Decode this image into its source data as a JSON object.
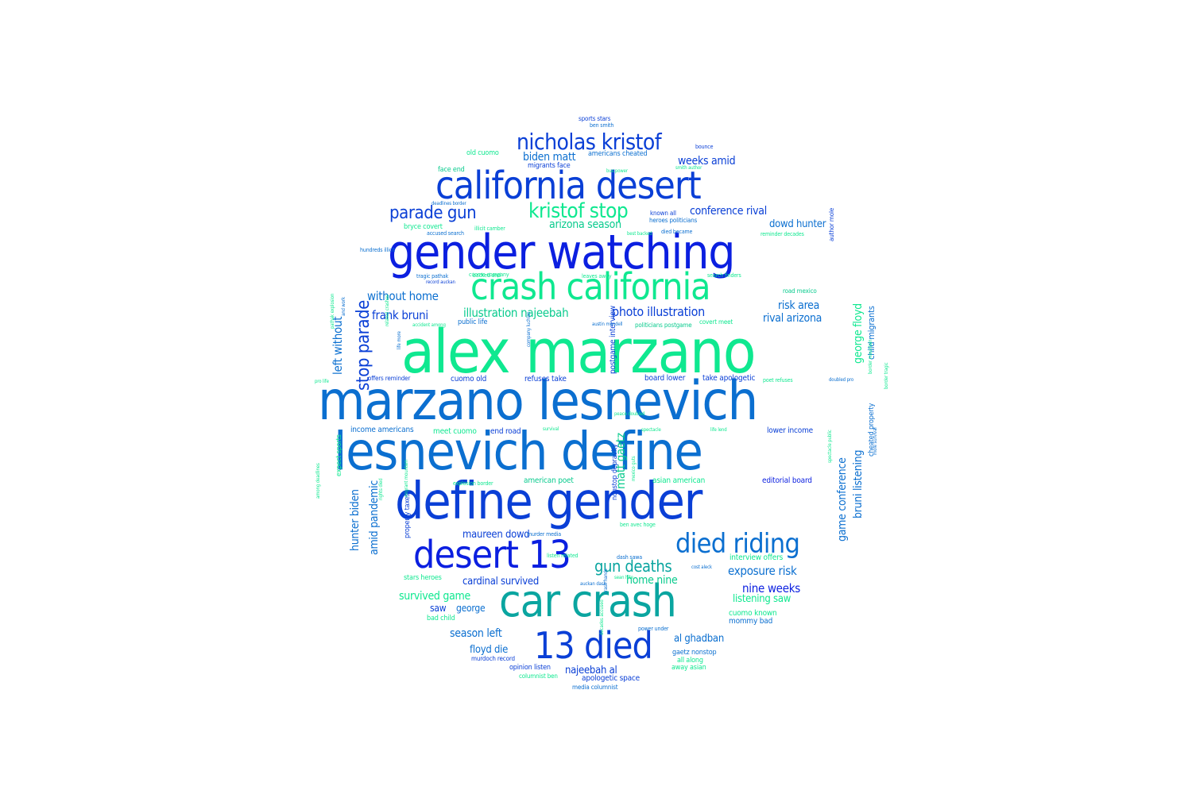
{
  "palette": {
    "blue": "#0b1fe0",
    "royal": "#0a3fd6",
    "azure": "#0b6fd0",
    "teal": "#0aa5a0",
    "mint": "#0fe890",
    "sea": "#0acb8e",
    "indigo": "#3a3af0"
  },
  "words": [
    {
      "text": "alex marzano",
      "color": "mint"
    },
    {
      "text": "marzano lesnevich",
      "color": "azure"
    },
    {
      "text": "lesnevich define",
      "color": "azure"
    },
    {
      "text": "gender watching",
      "color": "blue"
    },
    {
      "text": "define gender",
      "color": "royal"
    },
    {
      "text": "california desert",
      "color": "royal"
    },
    {
      "text": "crash california",
      "color": "mint"
    },
    {
      "text": "car crash",
      "color": "teal"
    },
    {
      "text": "desert 13",
      "color": "blue"
    },
    {
      "text": "13 died",
      "color": "royal"
    },
    {
      "text": "died riding",
      "color": "azure"
    },
    {
      "text": "nicholas kristof",
      "color": "royal"
    },
    {
      "text": "kristof stop",
      "color": "mint"
    },
    {
      "text": "parade gun",
      "color": "royal"
    },
    {
      "text": "stop parade",
      "color": "royal"
    },
    {
      "text": "gun deaths",
      "color": "teal"
    },
    {
      "text": "photo illustration",
      "color": "royal"
    },
    {
      "text": "illustration najeebah",
      "color": "sea"
    },
    {
      "text": "frank bruni",
      "color": "royal"
    },
    {
      "text": "without home",
      "color": "azure"
    },
    {
      "text": "left without",
      "color": "azure"
    },
    {
      "text": "matt gaetz",
      "color": "sea"
    },
    {
      "text": "game conference",
      "color": "azure"
    },
    {
      "text": "bruni listening",
      "color": "azure"
    },
    {
      "text": "george floyd",
      "color": "mint"
    },
    {
      "text": "hunter biden",
      "color": "azure"
    },
    {
      "text": "amid pandemic",
      "color": "azure"
    },
    {
      "text": "exposure risk",
      "color": "azure"
    },
    {
      "text": "nine weeks",
      "color": "blue"
    },
    {
      "text": "weeks amid",
      "color": "royal"
    },
    {
      "text": "conference rival",
      "color": "royal"
    },
    {
      "text": "rival arizona",
      "color": "azure"
    },
    {
      "text": "risk area",
      "color": "azure"
    },
    {
      "text": "biden matt",
      "color": "azure"
    },
    {
      "text": "arizona season",
      "color": "sea"
    },
    {
      "text": "season left",
      "color": "azure"
    },
    {
      "text": "dowd hunter",
      "color": "azure"
    },
    {
      "text": "maureen dowd",
      "color": "royal"
    },
    {
      "text": "cardinal survived",
      "color": "royal"
    },
    {
      "text": "survived game",
      "color": "mint"
    },
    {
      "text": "home nine",
      "color": "sea"
    },
    {
      "text": "listening saw",
      "color": "mint"
    },
    {
      "text": "al ghadban",
      "color": "azure"
    },
    {
      "text": "najeebah al",
      "color": "royal"
    },
    {
      "text": "floyd die",
      "color": "azure"
    },
    {
      "text": "saw",
      "color": "royal"
    },
    {
      "text": "george",
      "color": "azure"
    },
    {
      "text": "child migrants",
      "color": "azure"
    },
    {
      "text": "income americans",
      "color": "azure"
    },
    {
      "text": "lower income",
      "color": "royal"
    },
    {
      "text": "meet cuomo",
      "color": "mint"
    },
    {
      "text": "end road",
      "color": "royal"
    },
    {
      "text": "cuomo old",
      "color": "royal"
    },
    {
      "text": "refuses take",
      "color": "royal"
    },
    {
      "text": "take apologetic",
      "color": "royal"
    },
    {
      "text": "board lower",
      "color": "royal"
    },
    {
      "text": "editorial board",
      "color": "blue"
    },
    {
      "text": "american poet",
      "color": "sea"
    },
    {
      "text": "asian american",
      "color": "mint"
    },
    {
      "text": "cuomo known",
      "color": "mint"
    },
    {
      "text": "mommy bad",
      "color": "azure"
    },
    {
      "text": "interview offers",
      "color": "mint"
    },
    {
      "text": "postgame interview",
      "color": "royal"
    },
    {
      "text": "nonstop depravity",
      "color": "royal"
    },
    {
      "text": "cheated property",
      "color": "azure"
    },
    {
      "text": "property taxes",
      "color": "royal"
    },
    {
      "text": "stars heroes",
      "color": "mint"
    },
    {
      "text": "bad child",
      "color": "mint"
    },
    {
      "text": "expect sports",
      "color": "mint"
    },
    {
      "text": "opinion listen",
      "color": "royal"
    },
    {
      "text": "apologetic space",
      "color": "royal"
    },
    {
      "text": "away asian",
      "color": "mint"
    },
    {
      "text": "all along",
      "color": "mint"
    },
    {
      "text": "gaetz nonstop",
      "color": "azure"
    },
    {
      "text": "media columnist",
      "color": "azure"
    },
    {
      "text": "columnist ben",
      "color": "mint"
    },
    {
      "text": "murdoch record",
      "color": "royal"
    },
    {
      "text": "power under",
      "color": "azure"
    },
    {
      "text": "sports stars",
      "color": "royal"
    },
    {
      "text": "ben smith",
      "color": "azure"
    },
    {
      "text": "old cuomo",
      "color": "mint"
    },
    {
      "text": "americans cheated",
      "color": "azure"
    },
    {
      "text": "migrants face",
      "color": "royal"
    },
    {
      "text": "face end",
      "color": "sea"
    },
    {
      "text": "known all",
      "color": "royal"
    },
    {
      "text": "heroes politicians",
      "color": "azure"
    },
    {
      "text": "bryce covert",
      "color": "mint"
    },
    {
      "text": "covert meet",
      "color": "mint"
    },
    {
      "text": "politicians postgame",
      "color": "sea"
    },
    {
      "text": "public life",
      "color": "azure"
    },
    {
      "text": "road mexico",
      "color": "sea"
    },
    {
      "text": "offers reminder",
      "color": "royal"
    },
    {
      "text": "poet refuses",
      "color": "mint"
    },
    {
      "text": "died became",
      "color": "azure"
    },
    {
      "text": "tragic pathak",
      "color": "azure"
    },
    {
      "text": "cuomo company",
      "color": "mint"
    },
    {
      "text": "smith author",
      "color": "mint"
    },
    {
      "text": "record auckan",
      "color": "royal"
    },
    {
      "text": "hundreds illicit",
      "color": "azure"
    },
    {
      "text": "bus power",
      "color": "mint"
    },
    {
      "text": "best backed",
      "color": "mint"
    },
    {
      "text": "accused search",
      "color": "azure"
    },
    {
      "text": "deadlines border",
      "color": "azure"
    },
    {
      "text": "illicit camber",
      "color": "mint"
    },
    {
      "text": "backed and",
      "color": "mint"
    },
    {
      "text": "author mole",
      "color": "royal"
    },
    {
      "text": "leaves away",
      "color": "mint"
    },
    {
      "text": "search finders",
      "color": "mint"
    },
    {
      "text": "austin mendell",
      "color": "azure"
    },
    {
      "text": "reminder decades",
      "color": "mint"
    },
    {
      "text": "bounce",
      "color": "royal"
    },
    {
      "text": "ben avec hoge",
      "color": "mint"
    },
    {
      "text": "murder media",
      "color": "azure"
    },
    {
      "text": "listen related",
      "color": "mint"
    },
    {
      "text": "company luchlan",
      "color": "azure"
    },
    {
      "text": "accident among",
      "color": "mint"
    },
    {
      "text": "related crashes",
      "color": "mint"
    },
    {
      "text": "rights died",
      "color": "mint"
    },
    {
      "text": "migrant mountain",
      "color": "mint"
    },
    {
      "text": "among deadlines",
      "color": "mint"
    },
    {
      "text": "explosion border",
      "color": "mint"
    },
    {
      "text": "doubled pro",
      "color": "azure"
    },
    {
      "text": "pro life",
      "color": "mint"
    },
    {
      "text": "dash sawa",
      "color": "azure"
    },
    {
      "text": "survival",
      "color": "mint"
    },
    {
      "text": "peace doubled",
      "color": "mint"
    },
    {
      "text": "life lend",
      "color": "mint"
    },
    {
      "text": "and work",
      "color": "azure"
    },
    {
      "text": "spectacle public",
      "color": "mint"
    },
    {
      "text": "border tragic",
      "color": "mint"
    },
    {
      "text": "border mountain",
      "color": "mint"
    },
    {
      "text": "pathak explosion",
      "color": "mint"
    },
    {
      "text": "decades accused",
      "color": "mint"
    },
    {
      "text": "mexico guts",
      "color": "mint"
    },
    {
      "text": "mole survival",
      "color": "azure"
    },
    {
      "text": "auckan dash",
      "color": "azure"
    },
    {
      "text": "crash hands",
      "color": "azure"
    },
    {
      "text": "sean hite",
      "color": "mint"
    },
    {
      "text": "cost aleck",
      "color": "azure"
    },
    {
      "text": "spectacle",
      "color": "mint"
    },
    {
      "text": "life more",
      "color": "azure"
    }
  ]
}
